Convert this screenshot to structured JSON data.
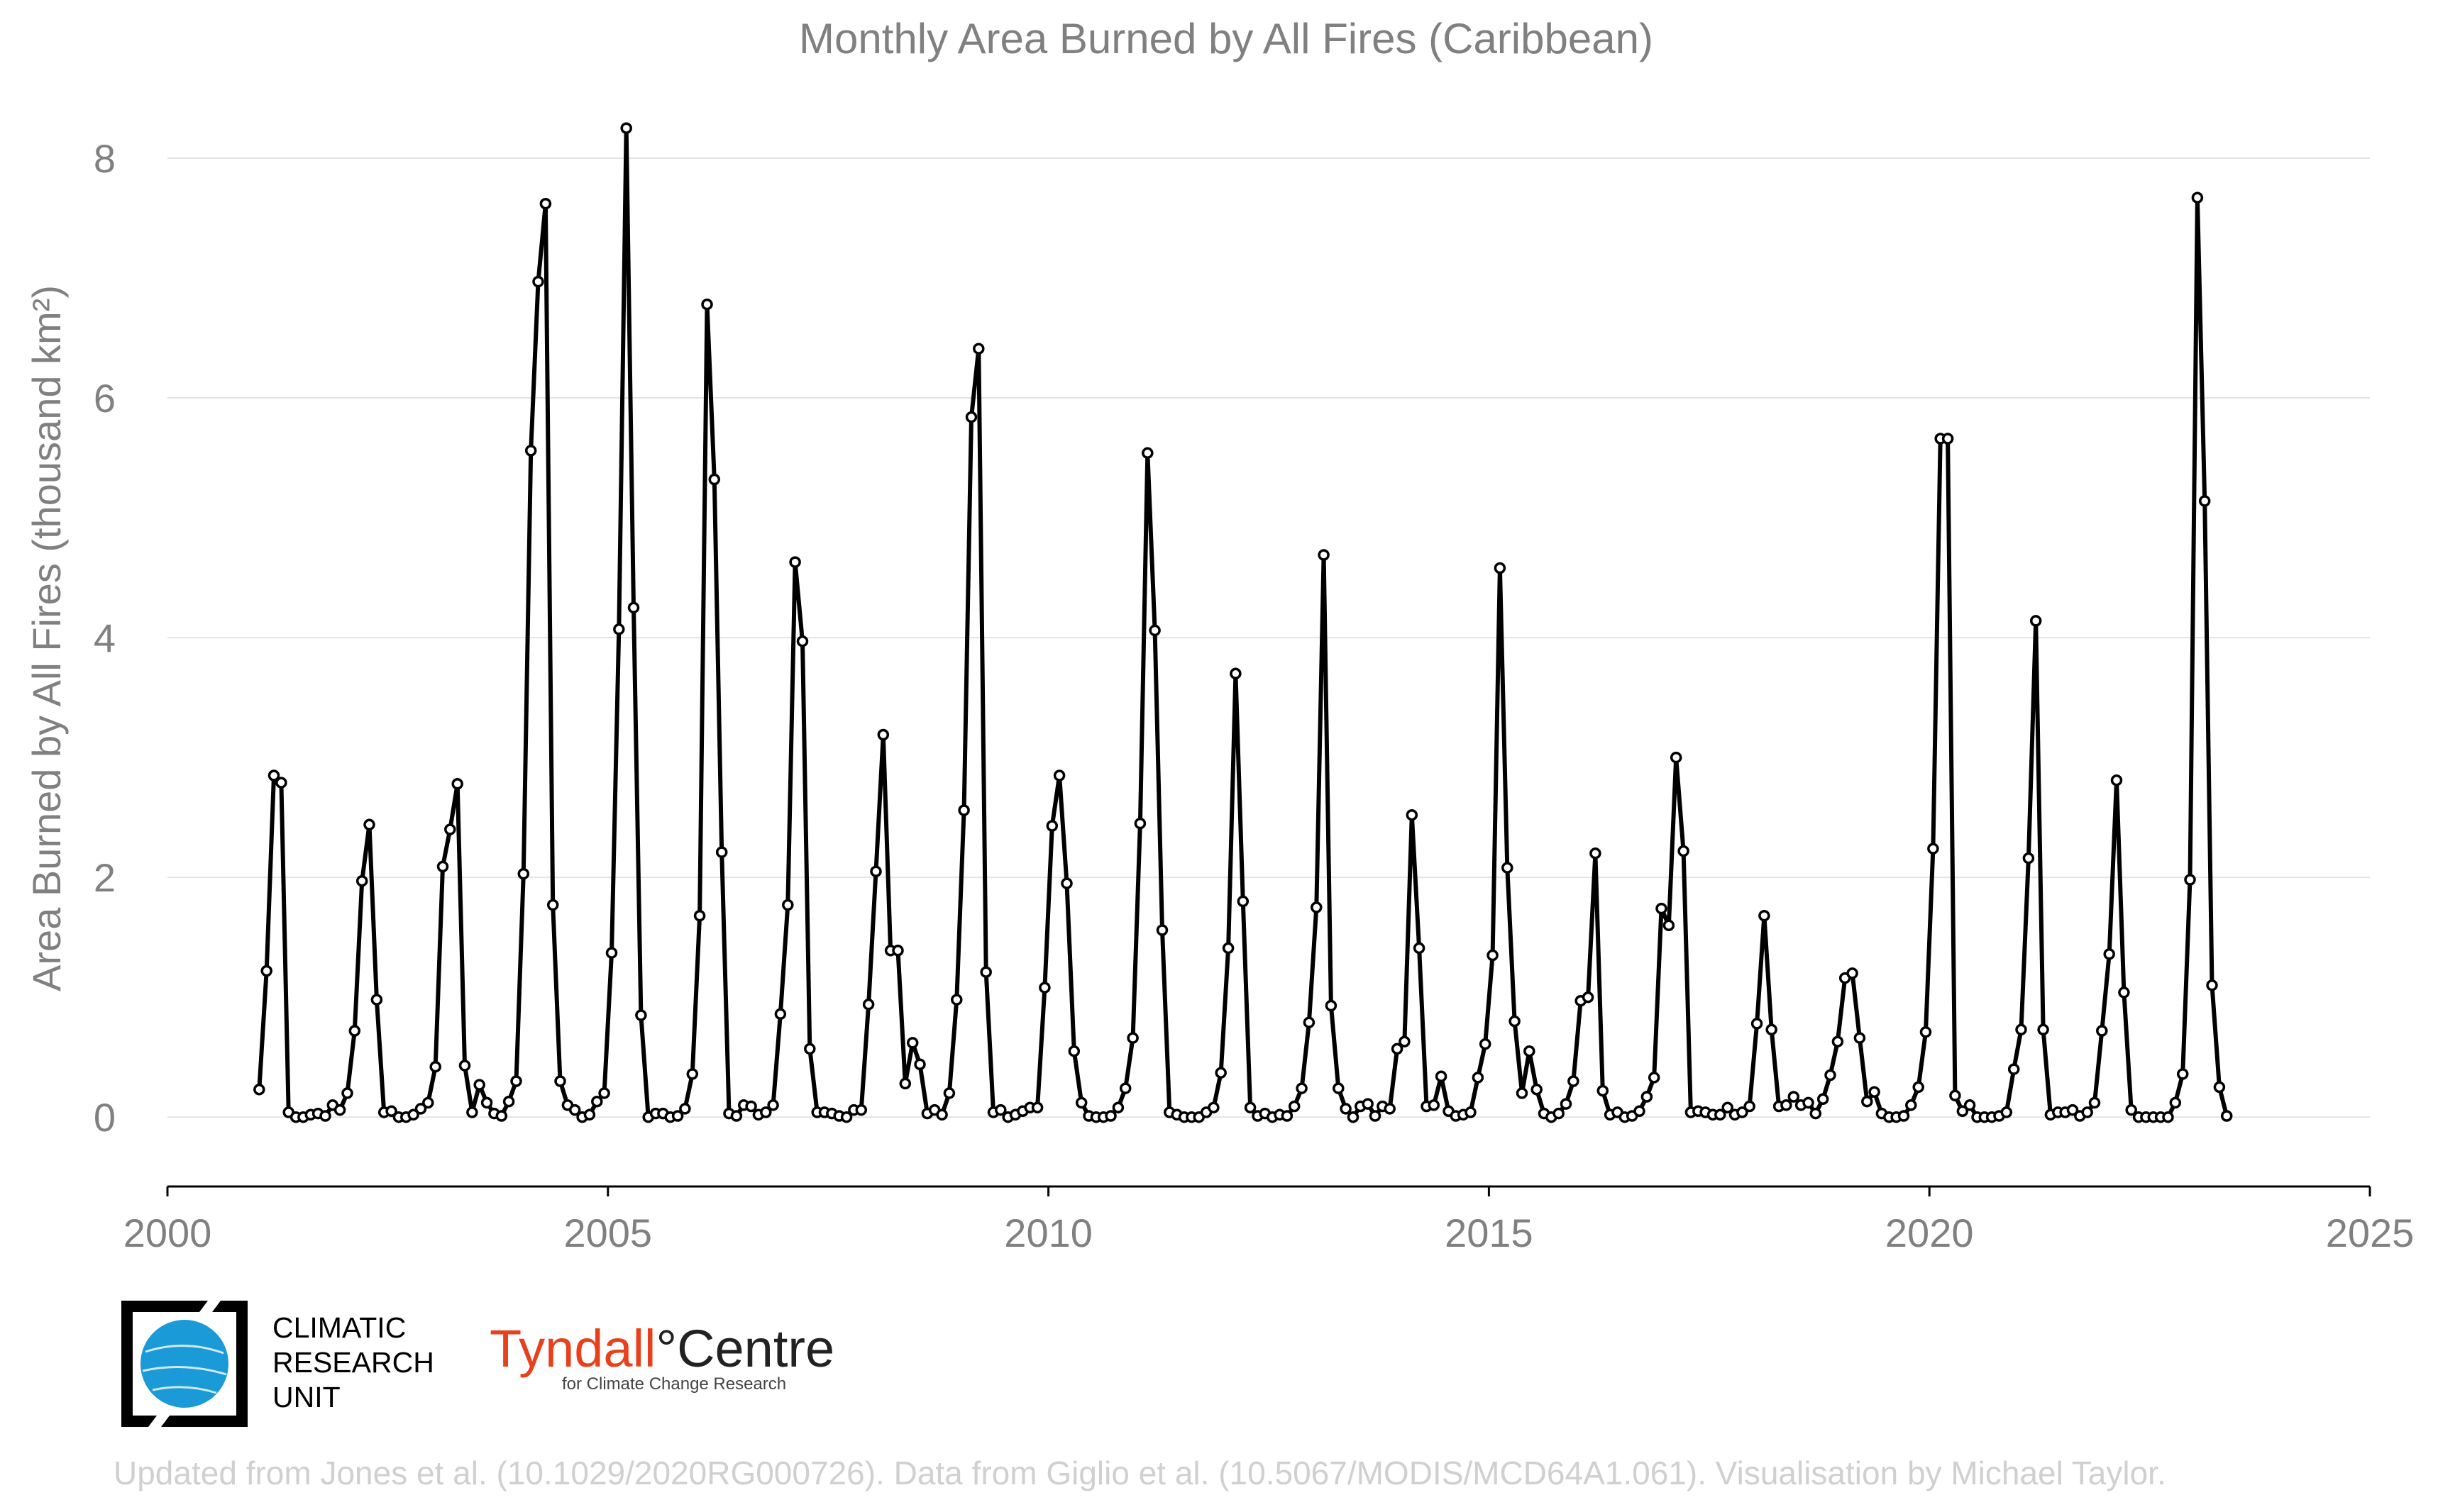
{
  "chart_data": {
    "type": "line",
    "title": "Monthly Area Burned by All Fires (Caribbean)",
    "ylabel": "Area Burned by All Fires (thousand km²)",
    "xlabel": "",
    "xlim": [
      2000,
      2025
    ],
    "ylim": [
      -0.62,
      8.55
    ],
    "x_ticks": [
      2000,
      2005,
      2010,
      2015,
      2020,
      2025
    ],
    "y_ticks": [
      0,
      2,
      4,
      6,
      8
    ],
    "grid": "horizontal",
    "start_year": 2001,
    "series": [
      {
        "color": "#000000",
        "values": [
          0.23,
          1.22,
          2.85,
          2.79,
          0.04,
          0.0,
          0.0,
          0.02,
          0.03,
          0.01,
          0.1,
          0.06,
          0.2,
          0.72,
          1.97,
          2.44,
          0.98,
          0.04,
          0.05,
          0.0,
          0.0,
          0.02,
          0.07,
          0.12,
          0.42,
          2.09,
          2.4,
          2.78,
          0.43,
          0.04,
          0.27,
          0.12,
          0.03,
          0.01,
          0.13,
          0.3,
          2.03,
          5.56,
          6.97,
          7.62,
          1.77,
          0.3,
          0.1,
          0.06,
          0.0,
          0.02,
          0.13,
          0.2,
          1.37,
          4.07,
          8.25,
          4.25,
          0.85,
          0.0,
          0.03,
          0.03,
          0.0,
          0.01,
          0.07,
          0.36,
          1.68,
          6.78,
          5.32,
          2.21,
          0.03,
          0.01,
          0.1,
          0.09,
          0.02,
          0.04,
          0.1,
          0.86,
          1.77,
          4.63,
          3.97,
          0.57,
          0.04,
          0.04,
          0.03,
          0.01,
          0.0,
          0.06,
          0.06,
          0.94,
          2.05,
          3.19,
          1.39,
          1.39,
          0.28,
          0.62,
          0.44,
          0.03,
          0.06,
          0.02,
          0.2,
          0.98,
          2.56,
          5.84,
          6.41,
          1.21,
          0.04,
          0.06,
          0.0,
          0.02,
          0.05,
          0.08,
          0.08,
          1.08,
          2.43,
          2.85,
          1.95,
          0.55,
          0.12,
          0.01,
          0.0,
          0.0,
          0.01,
          0.08,
          0.24,
          0.66,
          2.45,
          5.54,
          4.06,
          1.56,
          0.04,
          0.02,
          0.0,
          0.0,
          0.0,
          0.04,
          0.08,
          0.37,
          1.41,
          3.7,
          1.8,
          0.08,
          0.01,
          0.03,
          0.0,
          0.02,
          0.01,
          0.09,
          0.24,
          0.79,
          1.75,
          4.69,
          0.93,
          0.24,
          0.07,
          0.0,
          0.09,
          0.11,
          0.01,
          0.09,
          0.07,
          0.57,
          0.63,
          2.52,
          1.41,
          0.09,
          0.1,
          0.34,
          0.05,
          0.01,
          0.02,
          0.04,
          0.33,
          0.61,
          1.35,
          4.58,
          2.08,
          0.8,
          0.2,
          0.55,
          0.23,
          0.03,
          0.0,
          0.03,
          0.11,
          0.3,
          0.97,
          1.0,
          2.2,
          0.22,
          0.02,
          0.04,
          0.0,
          0.01,
          0.05,
          0.17,
          0.33,
          1.74,
          1.6,
          3.0,
          2.22,
          0.04,
          0.05,
          0.04,
          0.02,
          0.02,
          0.08,
          0.02,
          0.04,
          0.09,
          0.78,
          1.68,
          0.73,
          0.09,
          0.1,
          0.17,
          0.1,
          0.12,
          0.03,
          0.15,
          0.35,
          0.63,
          1.16,
          1.2,
          0.66,
          0.13,
          0.21,
          0.03,
          0.0,
          0.0,
          0.01,
          0.1,
          0.25,
          0.71,
          2.24,
          5.66,
          5.66,
          0.18,
          0.05,
          0.1,
          0.0,
          0.0,
          0.0,
          0.01,
          0.04,
          0.4,
          0.73,
          2.16,
          4.14,
          0.73,
          0.02,
          0.04,
          0.04,
          0.06,
          0.01,
          0.04,
          0.12,
          0.72,
          1.36,
          2.81,
          1.04,
          0.06,
          0.0,
          0.0,
          0.0,
          0.0,
          0.0,
          0.12,
          0.36,
          1.98,
          7.67,
          5.14,
          1.1,
          0.25,
          0.01
        ]
      }
    ]
  },
  "caption": "Updated from Jones et al. (10.1029/2020RG000726). Data from Giglio et al. (10.5067/MODIS/MCD64A1.061). Visualisation by Michael Taylor.",
  "logos": {
    "cru_lines": [
      "CLIMATIC",
      "RESEARCH",
      "UNIT"
    ],
    "tyndall_name": "Tyndall",
    "tyndall_degree": "°",
    "tyndall_centre": "Centre",
    "tyndall_sub": "for Climate Change Research"
  },
  "colors": {
    "text_gray": "#808080",
    "cru_blue": "#1a9ad6",
    "tyndall_red": "#e8401c"
  }
}
